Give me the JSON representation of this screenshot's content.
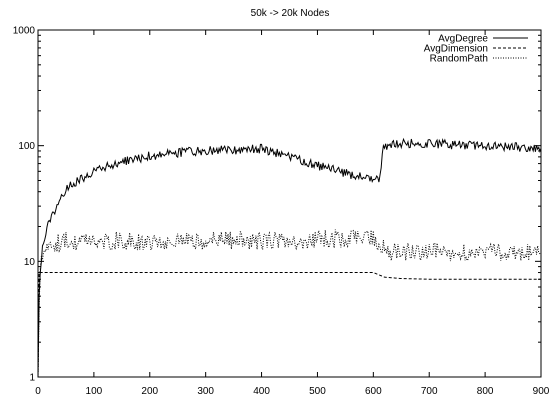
{
  "chart_data": {
    "type": "line",
    "title": "50k -> 20k Nodes",
    "xlabel": "",
    "ylabel": "",
    "xlim": [
      0,
      900
    ],
    "ylim": [
      1,
      1000
    ],
    "yscale": "log",
    "grid": false,
    "legend_position": "top-right",
    "x_ticks": [
      0,
      100,
      200,
      300,
      400,
      500,
      600,
      700,
      800,
      900
    ],
    "y_ticks": [
      1,
      10,
      100,
      1000
    ],
    "x_tick_labels": [
      "0",
      "100",
      "200",
      "300",
      "400",
      "500",
      "600",
      "700",
      "800",
      "900"
    ],
    "y_tick_labels": [
      "1",
      "10",
      "100",
      "1000"
    ],
    "series": [
      {
        "name": "AvgDegree",
        "dash": "solid",
        "noise": 0.04,
        "points": [
          [
            0,
            1
          ],
          [
            2,
            5
          ],
          [
            5,
            10
          ],
          [
            10,
            15
          ],
          [
            20,
            22
          ],
          [
            40,
            36
          ],
          [
            60,
            46
          ],
          [
            80,
            53
          ],
          [
            100,
            60
          ],
          [
            150,
            72
          ],
          [
            200,
            82
          ],
          [
            250,
            87
          ],
          [
            300,
            90
          ],
          [
            350,
            92
          ],
          [
            400,
            94
          ],
          [
            450,
            80
          ],
          [
            500,
            67
          ],
          [
            550,
            58
          ],
          [
            600,
            50
          ],
          [
            612,
            52
          ],
          [
            618,
            100
          ],
          [
            650,
            105
          ],
          [
            700,
            103
          ],
          [
            750,
            102
          ],
          [
            800,
            100
          ],
          [
            850,
            98
          ],
          [
            900,
            91
          ]
        ]
      },
      {
        "name": "AvgDimension",
        "dash": "dashed",
        "noise": 0,
        "points": [
          [
            0,
            1
          ],
          [
            2,
            8
          ],
          [
            600,
            8
          ],
          [
            620,
            7.3
          ],
          [
            650,
            7.1
          ],
          [
            700,
            7.0
          ],
          [
            900,
            7.0
          ]
        ]
      },
      {
        "name": "RandomPath",
        "dash": "dotted",
        "noise": 0.08,
        "points": [
          [
            0,
            1
          ],
          [
            3,
            8
          ],
          [
            8,
            12
          ],
          [
            15,
            14
          ],
          [
            50,
            15
          ],
          [
            200,
            15
          ],
          [
            400,
            15
          ],
          [
            500,
            15.5
          ],
          [
            600,
            16
          ],
          [
            612,
            14
          ],
          [
            625,
            12
          ],
          [
            900,
            12
          ]
        ]
      }
    ]
  }
}
